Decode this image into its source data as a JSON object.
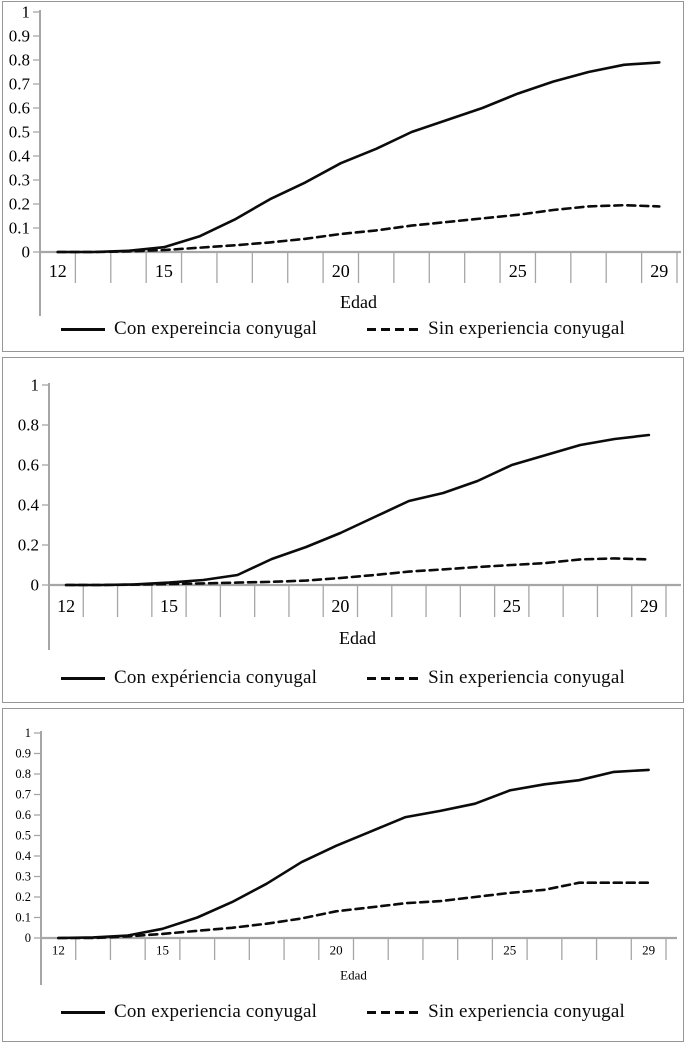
{
  "colors": {
    "series_line": "#0b0b0b",
    "axis": "#a6a6a6",
    "text": "#000000",
    "panel_border": "#979797",
    "background": "#ffffff"
  },
  "chart_data": [
    {
      "type": "line",
      "panel": 1,
      "title": "",
      "xlabel": "Edad",
      "ylabel": "",
      "x": [
        12,
        13,
        14,
        15,
        16,
        17,
        18,
        19,
        20,
        21,
        22,
        23,
        24,
        25,
        26,
        27,
        28,
        29
      ],
      "x_axis_labeled_ticks": [
        12,
        15,
        20,
        25,
        29
      ],
      "ylim": [
        0,
        1
      ],
      "grid": false,
      "legend_position": "bottom",
      "y_ticks": [
        0,
        0.1,
        0.2,
        0.3,
        0.4,
        0.5,
        0.6,
        0.7,
        0.8,
        0.9,
        1
      ],
      "y_tick_labels": [
        "0",
        "0.1",
        "0.2",
        "0.3",
        "0.4",
        "0.5",
        "0.6",
        "0.7",
        "0.8",
        "0.9",
        "1"
      ],
      "series": [
        {
          "name": "Con expereincia conyugal",
          "line_style": "solid",
          "values": [
            0,
            0,
            0.005,
            0.02,
            0.065,
            0.135,
            0.22,
            0.29,
            0.37,
            0.43,
            0.5,
            0.55,
            0.6,
            0.66,
            0.71,
            0.75,
            0.78,
            0.79
          ]
        },
        {
          "name": "Sin experiencia conyugal",
          "line_style": "dashed",
          "values": [
            0,
            0,
            0.003,
            0.008,
            0.018,
            0.028,
            0.04,
            0.055,
            0.075,
            0.09,
            0.11,
            0.125,
            0.14,
            0.155,
            0.175,
            0.19,
            0.195,
            0.19
          ]
        }
      ]
    },
    {
      "type": "line",
      "panel": 2,
      "title": "",
      "xlabel": "Edad",
      "ylabel": "",
      "x": [
        12,
        13,
        14,
        15,
        16,
        17,
        18,
        19,
        20,
        21,
        22,
        23,
        24,
        25,
        26,
        27,
        28,
        29
      ],
      "x_axis_labeled_ticks": [
        12,
        15,
        20,
        25,
        29
      ],
      "ylim": [
        0,
        1
      ],
      "grid": false,
      "legend_position": "bottom",
      "y_ticks": [
        0,
        0.2,
        0.4,
        0.6,
        0.8,
        1
      ],
      "y_tick_labels": [
        "0",
        "0.2",
        "0.4",
        "0.6",
        "0.8",
        "1"
      ],
      "series": [
        {
          "name": "Con expériencia conyugal",
          "line_style": "solid",
          "values": [
            0,
            0,
            0.003,
            0.012,
            0.025,
            0.05,
            0.13,
            0.19,
            0.26,
            0.34,
            0.42,
            0.46,
            0.52,
            0.6,
            0.65,
            0.7,
            0.73,
            0.75
          ]
        },
        {
          "name": "Sin experiencia conyugal",
          "line_style": "dashed",
          "values": [
            0,
            0,
            0.002,
            0.005,
            0.008,
            0.012,
            0.016,
            0.022,
            0.035,
            0.05,
            0.067,
            0.078,
            0.09,
            0.1,
            0.11,
            0.128,
            0.133,
            0.128
          ]
        }
      ]
    },
    {
      "type": "line",
      "panel": 3,
      "title": "",
      "xlabel": "Edad",
      "ylabel": "",
      "x": [
        12,
        13,
        14,
        15,
        16,
        17,
        18,
        19,
        20,
        21,
        22,
        23,
        24,
        25,
        26,
        27,
        28,
        29
      ],
      "x_axis_labeled_ticks": [
        12,
        15,
        20,
        25,
        29
      ],
      "ylim": [
        0,
        1
      ],
      "grid": false,
      "legend_position": "bottom",
      "y_ticks": [
        0,
        0.1,
        0.2,
        0.3,
        0.4,
        0.5,
        0.6,
        0.7,
        0.8,
        0.9,
        1
      ],
      "y_tick_labels": [
        "0",
        "0.1",
        "0.2",
        "0.3",
        "0.4",
        "0.5",
        "0.6",
        "0.7",
        "0.8",
        "0.9",
        "1"
      ],
      "series": [
        {
          "name": "Con experiencia conyugal",
          "line_style": "solid",
          "values": [
            0,
            0.003,
            0.012,
            0.045,
            0.1,
            0.175,
            0.265,
            0.37,
            0.45,
            0.52,
            0.59,
            0.62,
            0.655,
            0.72,
            0.75,
            0.77,
            0.81,
            0.82
          ]
        },
        {
          "name": "Sin experiencia conyugal",
          "line_style": "dashed",
          "values": [
            0,
            0,
            0.008,
            0.02,
            0.035,
            0.05,
            0.07,
            0.095,
            0.13,
            0.15,
            0.17,
            0.18,
            0.2,
            0.22,
            0.235,
            0.27,
            0.27,
            0.27
          ]
        }
      ]
    }
  ]
}
